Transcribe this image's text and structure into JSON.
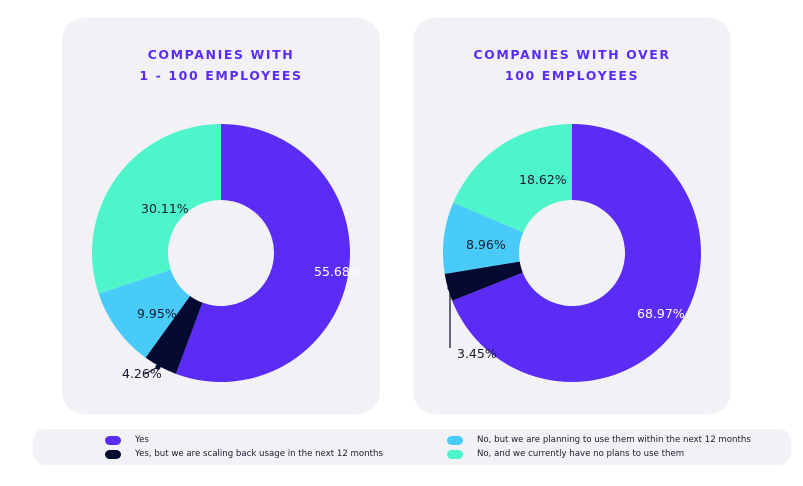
{
  "colors": {
    "yes": "#5b2cf5",
    "scaling_back": "#050a30",
    "planning": "#48cbf8",
    "no_plans": "#4ef5ca",
    "title": "#5b2cf5"
  },
  "legend": [
    {
      "label": "Yes",
      "color": "#5b2cf5"
    },
    {
      "label": "Yes, but we are scaling back usage in the next 12 months",
      "color": "#050a30"
    },
    {
      "label": "No, but we are planning to use them within the next 12 months",
      "color": "#48cbf8"
    },
    {
      "label": "No, and we currently have no plans to use them",
      "color": "#4ef5ca"
    }
  ],
  "chart_data": [
    {
      "type": "pie",
      "title_lines": [
        "COMPANIES WITH",
        "1 - 100 EMPLOYEES"
      ],
      "categories": [
        "Yes",
        "Yes, but we are scaling back usage in the next 12 months",
        "No, but we are planning to use them within the next 12 months",
        "No, and we currently have no plans to use them"
      ],
      "values": [
        55.68,
        4.26,
        9.95,
        30.11
      ],
      "labels": [
        "55.68%",
        "4.26%",
        "9.95%",
        "30.11%"
      ]
    },
    {
      "type": "pie",
      "title_lines": [
        "COMPANIES WITH OVER",
        "100 EMPLOYEES"
      ],
      "categories": [
        "Yes",
        "Yes, but we are scaling back usage in the next 12 months",
        "No, but we are planning to use them within the next 12 months",
        "No, and we currently have no plans to use them"
      ],
      "values": [
        68.97,
        3.45,
        8.96,
        18.62
      ],
      "labels": [
        "68.97%",
        "3.45%",
        "8.96%",
        "18.62%"
      ]
    }
  ]
}
